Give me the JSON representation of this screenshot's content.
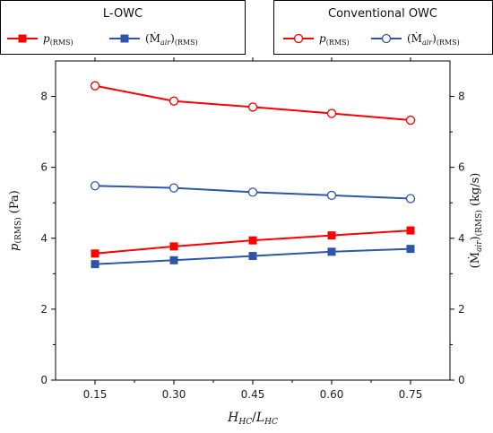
{
  "chart_data": {
    "type": "line",
    "x": [
      0.15,
      0.3,
      0.45,
      0.6,
      0.75
    ],
    "x_tick_labels": [
      "0.15",
      "0.30",
      "0.45",
      "0.60",
      "0.75"
    ],
    "xlabel": {
      "main": "H",
      "main_sub": "HC",
      "sep": "/",
      "den": "L",
      "den_sub": "HC"
    },
    "ylabel_left": {
      "main": "p",
      "sub": "(RMS)",
      "unit": " (Pa)"
    },
    "ylabel_right": {
      "main": "(Ṁ",
      "main_sub": "air",
      "close": ")",
      "sub": "(RMS)",
      "unit": " (kg/s)"
    },
    "ylim": [
      0,
      9
    ],
    "y_ticks": [
      0,
      2,
      4,
      6,
      8
    ],
    "y_tick_labels": [
      "0",
      "2",
      "4",
      "6",
      "8"
    ],
    "grid": false,
    "legend_groups": [
      {
        "title": "L-OWC",
        "placement": "top-left",
        "items": [
          {
            "label": "p",
            "sub": "(RMS)",
            "color": "#ff0000",
            "marker": "filled-square"
          },
          {
            "label": "(Ṁ",
            "label_sub": "air",
            "close": ")",
            "sub": "(RMS)",
            "color": "#2e56a6",
            "marker": "filled-square"
          }
        ]
      },
      {
        "title": "Conventional OWC",
        "placement": "top-right",
        "items": [
          {
            "label": "p",
            "sub": "(RMS)",
            "color": "#ff0000",
            "marker": "open-circle"
          },
          {
            "label": "(Ṁ",
            "label_sub": "air",
            "close": ")",
            "sub": "(RMS)",
            "color": "#2e56a6",
            "marker": "open-circle"
          }
        ]
      }
    ],
    "series": [
      {
        "name": "Conventional OWC p(RMS)",
        "group": "Conventional OWC",
        "color": "#ff0000",
        "marker": "open-circle",
        "values": [
          8.3,
          7.87,
          7.7,
          7.52,
          7.33
        ]
      },
      {
        "name": "Conventional OWC (Ṁair)(RMS)",
        "group": "Conventional OWC",
        "color": "#2e56a6",
        "marker": "open-circle",
        "values": [
          5.48,
          5.42,
          5.3,
          5.21,
          5.12
        ]
      },
      {
        "name": "L-OWC p(RMS)",
        "group": "L-OWC",
        "color": "#ff0000",
        "marker": "filled-square",
        "values": [
          3.57,
          3.77,
          3.94,
          4.08,
          4.22
        ]
      },
      {
        "name": "L-OWC (Ṁair)(RMS)",
        "group": "L-OWC",
        "color": "#2e56a6",
        "marker": "filled-square",
        "values": [
          3.27,
          3.38,
          3.5,
          3.62,
          3.7
        ]
      }
    ]
  }
}
